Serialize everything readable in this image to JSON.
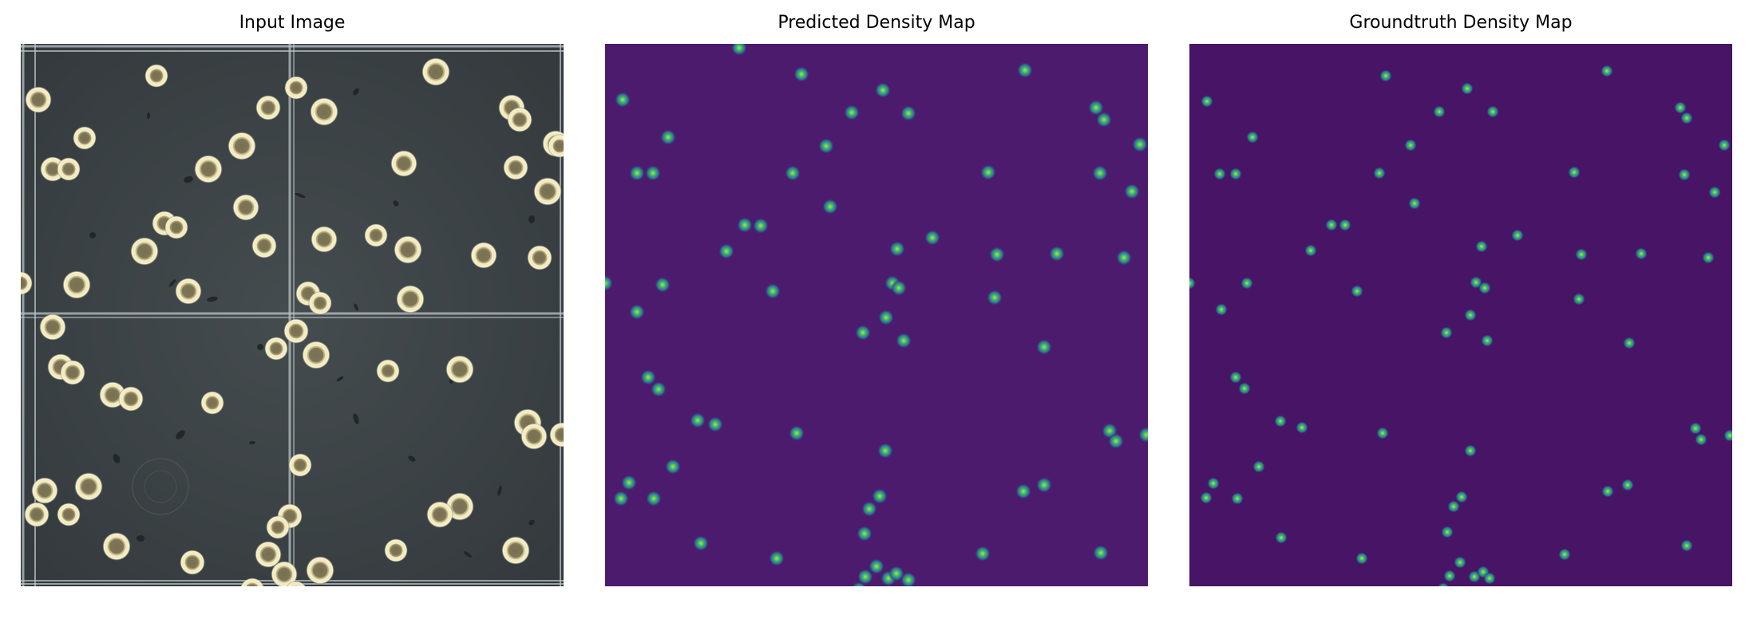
{
  "figure": {
    "panels": [
      {
        "id": "input",
        "title": "Input Image",
        "colors": {
          "background": "#3a4044",
          "grid": "#c9d3d6",
          "cell_ring": "#e6dca8",
          "cell_core": "#7a6f4c"
        }
      },
      {
        "id": "predicted",
        "title": "Predicted Density Map",
        "colors": {
          "background": "#4a1a6e",
          "blob_edge": "#31688e",
          "blob_mid": "#35b779",
          "blob_peak": "#c8e020"
        }
      },
      {
        "id": "groundtruth",
        "title": "Groundtruth Density Map",
        "colors": {
          "background": "#481466",
          "blob_edge": "#31688e",
          "blob_mid": "#35b779",
          "blob_peak": "#c8e020"
        }
      }
    ]
  }
}
